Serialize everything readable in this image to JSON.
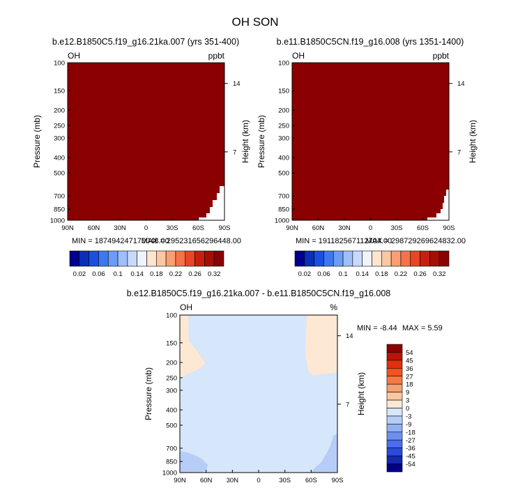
{
  "figure": {
    "title": "OH SON"
  },
  "chart_data": [
    {
      "type": "heatmap",
      "title": "b.e12.B1850C5.f19_g16.21ka.007 (yrs 351-400)",
      "left_string": "OH",
      "right_string": "ppbt",
      "xlabel": "",
      "ylabel": "Pressure (mb)",
      "y2label": "Height (km)",
      "x_ticks": [
        "90N",
        "60N",
        "30N",
        "0",
        "30S",
        "60S",
        "90S"
      ],
      "y_ticks": [
        "100",
        "150",
        "200",
        "250",
        "300",
        "400",
        "500",
        "700",
        "850",
        "1000"
      ],
      "y2_ticks": [
        "14",
        "7"
      ],
      "ylim": [
        1000,
        100
      ],
      "y_scale": "log",
      "min_label": "MIN = 187494247170048.00",
      "max_label": "MAX = 295231656296448.00",
      "fill_color": "#8b0000"
    },
    {
      "type": "heatmap",
      "title": "b.e11.B1850C5CN.f19_g16.008 (yrs 1351-1400)",
      "left_string": "OH",
      "right_string": "ppbt",
      "xlabel": "",
      "ylabel": "Pressure (mb)",
      "y2label": "Height (km)",
      "x_ticks": [
        "90N",
        "60N",
        "30N",
        "0",
        "30S",
        "60S",
        "90S"
      ],
      "y_ticks": [
        "100",
        "150",
        "200",
        "250",
        "300",
        "400",
        "500",
        "700",
        "850",
        "1000"
      ],
      "y2_ticks": [
        "14",
        "7"
      ],
      "ylim": [
        1000,
        100
      ],
      "y_scale": "log",
      "min_label": "MIN = 191182567112704.00",
      "max_label": "MAX = 298729269624832.00",
      "fill_color": "#8b0000"
    },
    {
      "type": "heatmap",
      "title": "b.e12.B1850C5.f19_g16.21ka.007 - b.e11.B1850C5CN.f19_g16.008",
      "left_string": "OH",
      "right_string": "%",
      "xlabel": "",
      "ylabel": "Pressure (mb)",
      "y2label": "Height (km)",
      "x_ticks": [
        "90N",
        "60N",
        "30N",
        "0",
        "30S",
        "60S",
        "90S"
      ],
      "y_ticks": [
        "100",
        "150",
        "200",
        "250",
        "300",
        "400",
        "500",
        "700",
        "850",
        "1000"
      ],
      "y2_ticks": [
        "14",
        "7"
      ],
      "ylim": [
        1000,
        100
      ],
      "y_scale": "log",
      "min_label": "MIN =  -8.44",
      "max_label": "MAX =   5.59",
      "background_color": "#d6e6fb"
    }
  ],
  "colorbar_top": {
    "labels": [
      "0.02",
      "0.06",
      "0.1",
      "0.14",
      "0.18",
      "0.22",
      "0.26",
      "0.32"
    ],
    "colors": [
      "#00008b",
      "#0a2fb8",
      "#1a4fe0",
      "#3e78f0",
      "#6d9cf5",
      "#9ebff8",
      "#c8dafb",
      "#eef3fd",
      "#fde5d0",
      "#fcc7a3",
      "#fb9e72",
      "#f77149",
      "#ea4525",
      "#c71f0f",
      "#a50e05",
      "#8b0000"
    ]
  },
  "colorbar_diff": {
    "labels": [
      "54",
      "45",
      "36",
      "27",
      "18",
      "9",
      "3",
      "0",
      "-3",
      "-9",
      "-18",
      "-27",
      "-36",
      "-45",
      "-54"
    ],
    "colors": [
      "#8b0000",
      "#b81505",
      "#e0300f",
      "#f2531f",
      "#f57a45",
      "#f8a070",
      "#fbc6a2",
      "#fde8d4",
      "#d6e6fb",
      "#b7cdf8",
      "#93b0f5",
      "#6c8ff2",
      "#4a6ef0",
      "#2a4bdb",
      "#1428b0",
      "#00008b"
    ]
  }
}
